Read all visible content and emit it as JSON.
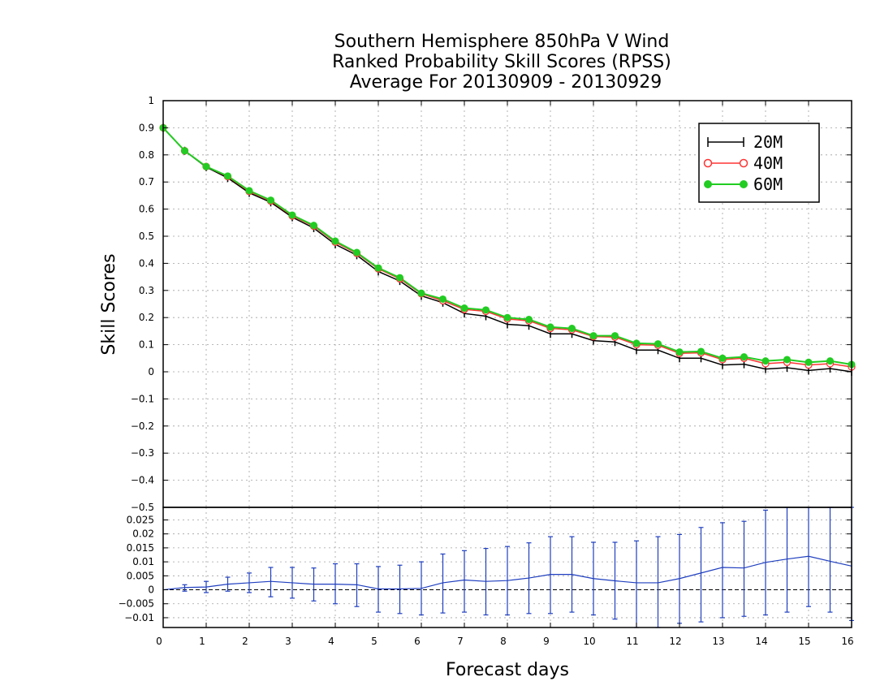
{
  "chart_data": [
    {
      "type": "line",
      "title": [
        "Southern Hemisphere 850hPa V Wind",
        "Ranked Probability Skill Scores (RPSS)",
        "Average For 20130909 - 20130929"
      ],
      "ylabel": "Skill Scores",
      "ylim": [
        -0.5,
        1
      ],
      "yticks": [
        "1",
        "0.9",
        "0.8",
        "0.7",
        "0.6",
        "0.5",
        "0.4",
        "0.3",
        "0.2",
        "0.1",
        "0",
        "−0.1",
        "−0.2",
        "−0.3",
        "−0.4",
        "−0.5"
      ],
      "ytick_values": [
        1,
        0.9,
        0.8,
        0.7,
        0.6,
        0.5,
        0.4,
        0.3,
        0.2,
        0.1,
        0,
        -0.1,
        -0.2,
        -0.3,
        -0.4,
        -0.5
      ],
      "grid": true,
      "legend_position": "top-right",
      "x": [
        0,
        0.5,
        1,
        1.5,
        2,
        2.5,
        3,
        3.5,
        4,
        4.5,
        5,
        5.5,
        6,
        6.5,
        7,
        7.5,
        8,
        8.5,
        9,
        9.5,
        10,
        10.5,
        11,
        11.5,
        12,
        12.5,
        13,
        13.5,
        14,
        14.5,
        15,
        15.5,
        16
      ],
      "series": [
        {
          "name": "20M",
          "color": "#000000",
          "marker": "plus",
          "values": [
            0.9,
            0.815,
            0.755,
            0.715,
            0.66,
            0.625,
            0.57,
            0.53,
            0.47,
            0.43,
            0.37,
            0.335,
            0.28,
            0.255,
            0.215,
            0.205,
            0.175,
            0.17,
            0.14,
            0.14,
            0.115,
            0.11,
            0.08,
            0.08,
            0.05,
            0.05,
            0.025,
            0.028,
            0.01,
            0.015,
            0.005,
            0.012,
            0.0
          ]
        },
        {
          "name": "40M",
          "color": "#ff3333",
          "marker": "open-circle",
          "values": [
            0.9,
            0.815,
            0.757,
            0.72,
            0.665,
            0.63,
            0.575,
            0.537,
            0.478,
            0.437,
            0.38,
            0.343,
            0.288,
            0.262,
            0.23,
            0.223,
            0.195,
            0.188,
            0.16,
            0.155,
            0.13,
            0.128,
            0.1,
            0.098,
            0.068,
            0.07,
            0.045,
            0.05,
            0.03,
            0.035,
            0.025,
            0.03,
            0.018
          ]
        },
        {
          "name": "60M",
          "color": "#22cc22",
          "marker": "filled-circle",
          "values": [
            0.9,
            0.815,
            0.757,
            0.722,
            0.668,
            0.633,
            0.578,
            0.54,
            0.482,
            0.44,
            0.383,
            0.347,
            0.29,
            0.268,
            0.235,
            0.228,
            0.2,
            0.193,
            0.165,
            0.16,
            0.133,
            0.133,
            0.105,
            0.103,
            0.073,
            0.075,
            0.05,
            0.055,
            0.04,
            0.045,
            0.035,
            0.04,
            0.027
          ]
        }
      ]
    },
    {
      "type": "line",
      "xlabel": "Forecast days",
      "ylim": [
        -0.0135,
        0.0295
      ],
      "yticks": [
        "0.025",
        "0.02",
        "0.015",
        "0.01",
        "0.005",
        "0",
        "−0.005",
        "−0.01"
      ],
      "ytick_values": [
        0.025,
        0.02,
        0.015,
        0.01,
        0.005,
        0,
        -0.005,
        -0.01
      ],
      "xlim": [
        0,
        16
      ],
      "xticks": [
        "0",
        "1",
        "2",
        "3",
        "4",
        "5",
        "6",
        "7",
        "8",
        "9",
        "10",
        "11",
        "12",
        "13",
        "14",
        "15",
        "16"
      ],
      "grid": true,
      "x": [
        0,
        0.5,
        1,
        1.5,
        2,
        2.5,
        3,
        3.5,
        4,
        4.5,
        5,
        5.5,
        6,
        6.5,
        7,
        7.5,
        8,
        8.5,
        9,
        9.5,
        10,
        10.5,
        11,
        11.5,
        12,
        12.5,
        13,
        13.5,
        14,
        14.5,
        15,
        15.5,
        16
      ],
      "series": [
        {
          "color": "#1f3fbf",
          "values": [
            0,
            0.0008,
            0.001,
            0.002,
            0.0025,
            0.003,
            0.0025,
            0.002,
            0.002,
            0.0018,
            0.0003,
            0.0003,
            0.0005,
            0.0025,
            0.0035,
            0.003,
            0.0033,
            0.0042,
            0.0055,
            0.0055,
            0.004,
            0.0032,
            0.0025,
            0.0025,
            0.004,
            0.006,
            0.008,
            0.0078,
            0.0098,
            0.011,
            0.012,
            0.0102,
            0.0085
          ],
          "error_low": [
            0,
            -0.0005,
            -0.001,
            -0.0005,
            -0.001,
            -0.0025,
            -0.003,
            -0.004,
            -0.005,
            -0.006,
            -0.008,
            -0.0085,
            -0.009,
            -0.0083,
            -0.008,
            -0.009,
            -0.009,
            -0.0085,
            -0.0085,
            -0.008,
            -0.009,
            -0.0105,
            -0.0135,
            -0.0135,
            -0.012,
            -0.0115,
            -0.01,
            -0.0095,
            -0.009,
            -0.008,
            -0.006,
            -0.008,
            -0.011
          ],
          "error_high": [
            0,
            0.0018,
            0.003,
            0.0045,
            0.006,
            0.008,
            0.008,
            0.0078,
            0.0093,
            0.0093,
            0.0083,
            0.0088,
            0.01,
            0.0128,
            0.014,
            0.0148,
            0.0155,
            0.0168,
            0.019,
            0.019,
            0.017,
            0.017,
            0.0175,
            0.019,
            0.0198,
            0.0223,
            0.024,
            0.0245,
            0.0285,
            0.0295,
            0.0295,
            0.0295,
            0.0295
          ]
        }
      ]
    }
  ]
}
